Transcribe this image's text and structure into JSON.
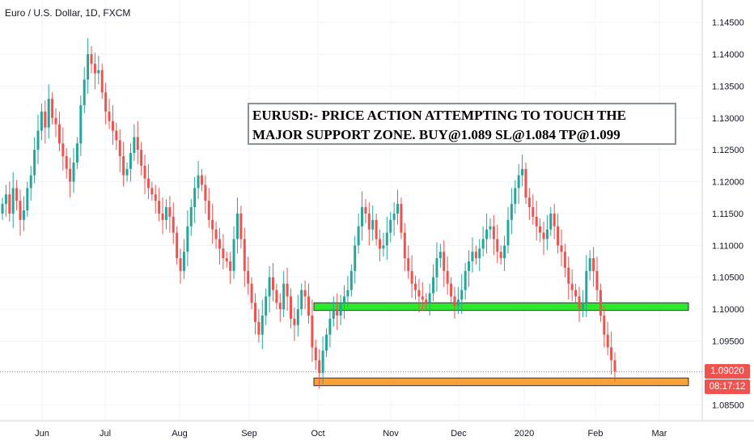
{
  "chart_data": {
    "type": "candlestick",
    "title": "Euro / U.S. Dollar, 1D, FXCM",
    "y_ticks": [
      "1.14500",
      "1.14000",
      "1.13500",
      "1.13000",
      "1.12500",
      "1.12000",
      "1.11500",
      "1.11000",
      "1.10500",
      "1.10000",
      "1.09500",
      "1.09000",
      "1.08500"
    ],
    "x_ticks": [
      "Jun",
      "Jul",
      "Aug",
      "Sep",
      "Oct",
      "Nov",
      "Dec",
      "2020",
      "Feb",
      "Mar"
    ],
    "ylim": [
      1.0825,
      1.1485
    ],
    "current_price": "1.09020",
    "countdown": "08:17:12",
    "annotation": [
      "EURUSD:- PRICE ACTION ATTEMPTING TO TOUCH THE",
      "MAJOR SUPPORT ZONE. BUY@1.089 SL@1.084 TP@1.099"
    ],
    "zones": [
      {
        "label": "resistance/flip zone",
        "from": 1.0998,
        "to": 1.101,
        "color": "#2ee82e"
      },
      {
        "label": "major support zone",
        "from": 1.088,
        "to": 1.0892,
        "color": "#f7a13a"
      }
    ],
    "closes": [
      1.1165,
      1.118,
      1.115,
      1.119,
      1.117,
      1.114,
      1.1155,
      1.119,
      1.121,
      1.125,
      1.128,
      1.131,
      1.1285,
      1.133,
      1.13,
      1.129,
      1.126,
      1.124,
      1.122,
      1.12,
      1.123,
      1.126,
      1.132,
      1.136,
      1.14,
      1.1385,
      1.137,
      1.1375,
      1.134,
      1.131,
      1.1295,
      1.128,
      1.1265,
      1.124,
      1.121,
      1.122,
      1.1245,
      1.127,
      1.125,
      1.1225,
      1.1205,
      1.119,
      1.118,
      1.117,
      1.115,
      1.114,
      1.116,
      1.1145,
      1.112,
      1.108,
      1.106,
      1.109,
      1.113,
      1.116,
      1.119,
      1.121,
      1.1195,
      1.117,
      1.114,
      1.1125,
      1.111,
      1.1095,
      1.108,
      1.1075,
      1.106,
      1.111,
      1.115,
      1.111,
      1.106,
      1.104,
      1.101,
      1.098,
      1.096,
      1.099,
      1.102,
      1.105,
      1.103,
      1.101,
      1.1,
      1.104,
      1.102,
      1.0985,
      1.0975,
      1.1,
      1.103,
      1.102,
      1.099,
      1.094,
      1.092,
      1.09,
      1.0935,
      1.096,
      1.0985,
      1.1,
      1.099,
      1.101,
      1.102,
      1.103,
      1.106,
      1.11,
      1.113,
      1.116,
      1.115,
      1.1125,
      1.114,
      1.111,
      1.1095,
      1.11,
      1.112,
      1.114,
      1.115,
      1.1165,
      1.112,
      1.108,
      1.106,
      1.104,
      1.103,
      1.102,
      1.1015,
      1.101,
      1.1025,
      1.105,
      1.108,
      1.109,
      1.106,
      1.104,
      1.102,
      1.1005,
      1.1015,
      1.103,
      1.106,
      1.1075,
      1.109,
      1.108,
      1.1095,
      1.111,
      1.1125,
      1.113,
      1.111,
      1.109,
      1.108,
      1.11,
      1.114,
      1.1165,
      1.119,
      1.121,
      1.122,
      1.1175,
      1.116,
      1.1145,
      1.113,
      1.112,
      1.111,
      1.1125,
      1.115,
      1.113,
      1.11,
      1.109,
      1.1065,
      1.104,
      1.103,
      1.102,
      1.1,
      1.101,
      1.106,
      1.108,
      1.106,
      1.103,
      1.099,
      1.096,
      1.094,
      1.092,
      1.0902
    ]
  }
}
